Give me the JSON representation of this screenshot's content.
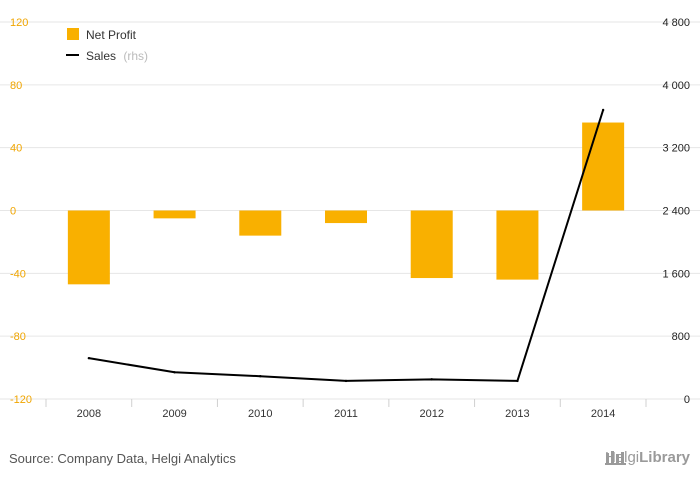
{
  "chart_data": {
    "type": "bar",
    "categories": [
      "2008",
      "2009",
      "2010",
      "2011",
      "2012",
      "2013",
      "2014"
    ],
    "series": [
      {
        "name": "Net Profit",
        "axis": "left",
        "kind": "bar",
        "values": [
          -47,
          -5,
          -16,
          -8,
          -43,
          -44,
          56
        ]
      },
      {
        "name": "Sales",
        "suffix": "(rhs)",
        "axis": "right",
        "kind": "line",
        "values": [
          520,
          340,
          290,
          230,
          250,
          230,
          3680
        ]
      }
    ],
    "y_left": {
      "min": -120,
      "max": 120,
      "ticks": [
        "120",
        "80",
        "40",
        "0",
        "-40",
        "-80",
        "-120"
      ]
    },
    "y_right": {
      "min": 0,
      "max": 4800,
      "ticks": [
        "4 800",
        "4 000",
        "3 200",
        "2 400",
        "1 600",
        "800",
        "0"
      ]
    },
    "legend_position": "top-left",
    "grid": true
  },
  "colors": {
    "bar": "#f9b000",
    "line": "#000000",
    "grid": "#e6e6e6"
  },
  "footer": {
    "source": "Source: Company Data, Helgi Analytics",
    "brand_light": "Helgi",
    "brand_bold": "Library"
  }
}
